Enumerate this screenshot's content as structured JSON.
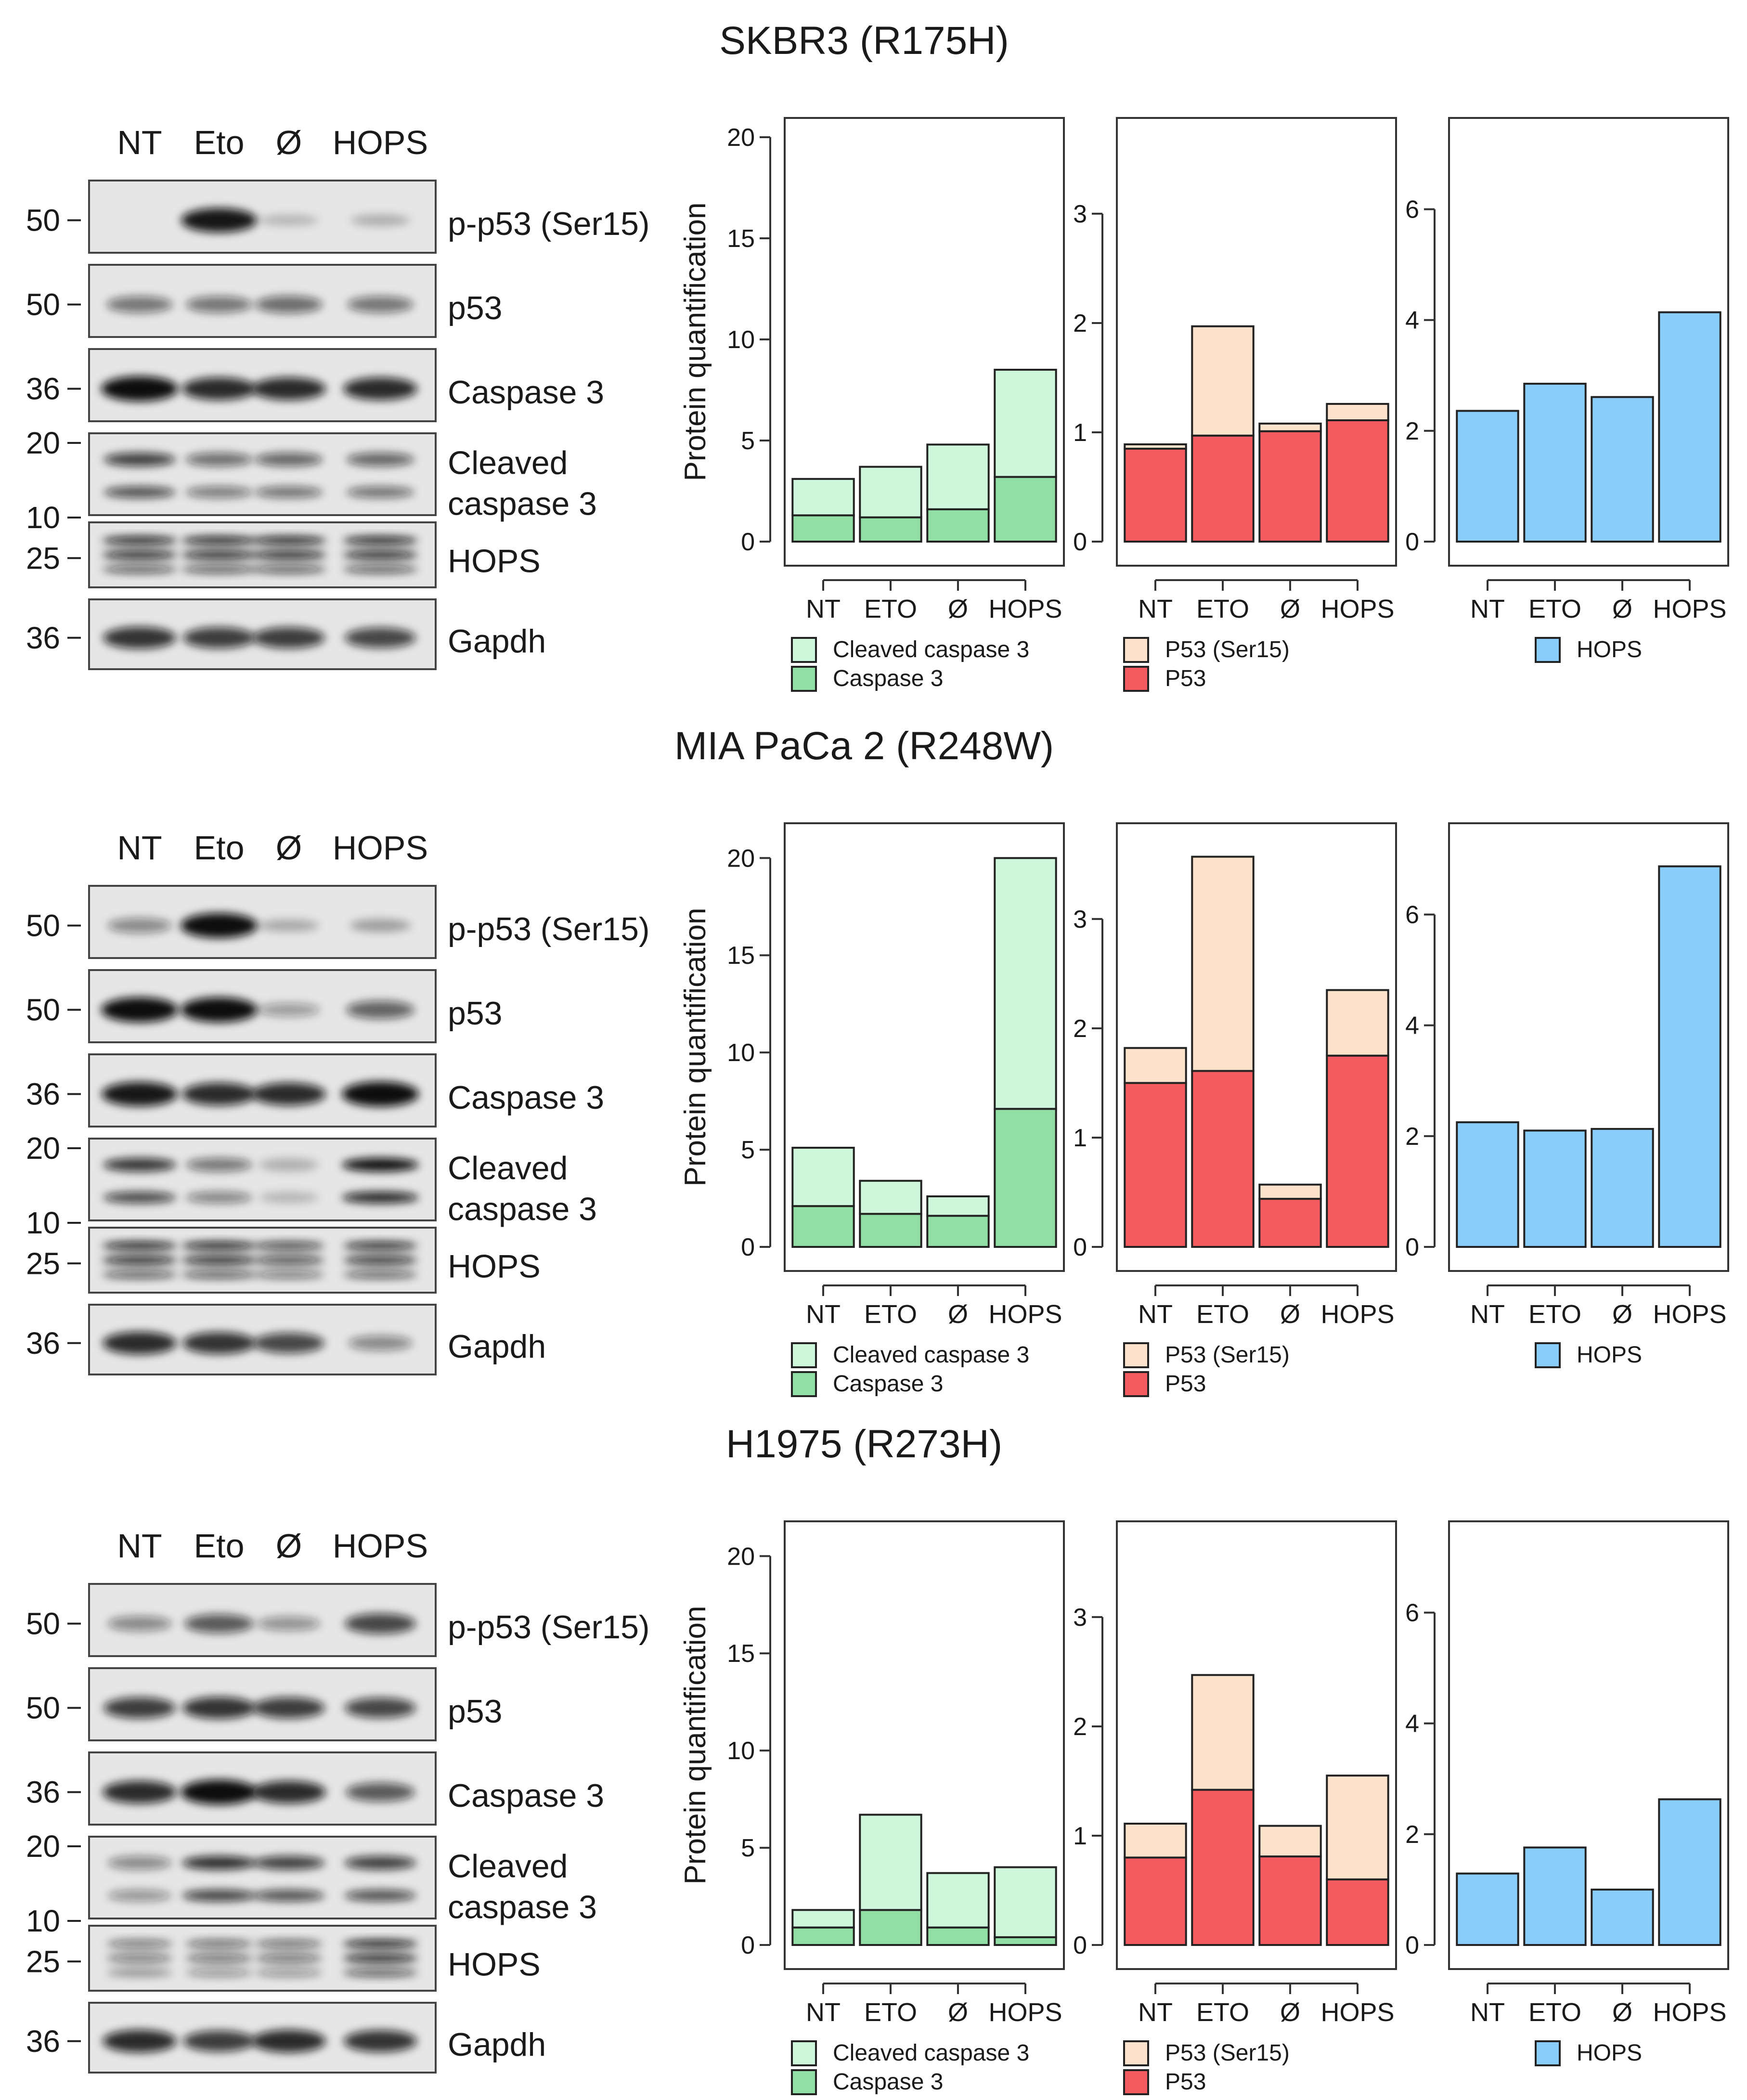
{
  "panels": [
    {
      "title": "SKBR3 (R175H)",
      "blot": {
        "lanes": [
          "NT",
          "Eto",
          "Ø",
          "HOPS"
        ],
        "rows": [
          {
            "label": "p-p53 (Ser15)",
            "marker": "50",
            "intensity": [
              0.0,
              0.95,
              0.08,
              0.12
            ],
            "bands": 1
          },
          {
            "label": "p53",
            "marker": "50",
            "intensity": [
              0.45,
              0.45,
              0.5,
              0.45
            ],
            "bands": 1
          },
          {
            "label": "Caspase 3",
            "marker": "36",
            "intensity": [
              1.0,
              0.85,
              0.85,
              0.85
            ],
            "bands": 1
          },
          {
            "label": "Cleaved\ncaspase 3",
            "marker": "20",
            "marker2": "10",
            "intensity": [
              0.75,
              0.5,
              0.55,
              0.55
            ],
            "bands": 2
          },
          {
            "label": "HOPS",
            "marker": "25",
            "intensity": [
              0.9,
              0.9,
              0.9,
              0.9
            ],
            "bands": 3
          },
          {
            "label": "Gapdh",
            "marker": "36",
            "intensity": [
              0.8,
              0.75,
              0.75,
              0.7
            ],
            "bands": 1
          }
        ]
      },
      "charts": [
        {
          "type": "bar",
          "stacked": true,
          "ylabel": "Protein quantification",
          "ylim": [
            0,
            20
          ],
          "yticks": [
            0,
            5,
            10,
            15,
            20
          ],
          "categories": [
            "NT",
            "ETO",
            "Ø",
            "HOPS"
          ],
          "series": [
            {
              "name": "Caspase 3",
              "color": "#92dfa6",
              "values": [
                1.3,
                1.2,
                1.6,
                3.2
              ]
            },
            {
              "name": "Cleaved caspase 3",
              "color": "#cff7dc",
              "values": [
                1.8,
                2.5,
                3.2,
                5.3
              ]
            }
          ]
        },
        {
          "type": "bar",
          "stacked": true,
          "ylabel": "",
          "ylim": [
            0,
            3.7
          ],
          "yticks": [
            0,
            1,
            2,
            3
          ],
          "categories": [
            "NT",
            "ETO",
            "Ø",
            "HOPS"
          ],
          "series": [
            {
              "name": "P53",
              "color": "#f45b60",
              "values": [
                0.85,
                0.97,
                1.01,
                1.11
              ]
            },
            {
              "name": "P53 (Ser15)",
              "color": "#fde3cc",
              "values": [
                0.04,
                1.0,
                0.07,
                0.15
              ]
            }
          ]
        },
        {
          "type": "bar",
          "stacked": false,
          "ylabel": "",
          "ylim": [
            0,
            7.3
          ],
          "yticks": [
            0,
            2,
            4,
            6
          ],
          "categories": [
            "NT",
            "ETO",
            "Ø",
            "HOPS"
          ],
          "series": [
            {
              "name": "HOPS",
              "color": "#8bcdfa",
              "values": [
                2.36,
                2.85,
                2.61,
                4.14
              ]
            }
          ]
        }
      ]
    },
    {
      "title": "MIA PaCa 2 (R248W)",
      "blot": {
        "lanes": [
          "NT",
          "Eto",
          "Ø",
          "HOPS"
        ],
        "rows": [
          {
            "label": "p-p53 (Ser15)",
            "marker": "50",
            "intensity": [
              0.35,
              1.0,
              0.15,
              0.2
            ],
            "bands": 1
          },
          {
            "label": "p53",
            "marker": "50",
            "intensity": [
              1.0,
              1.0,
              0.25,
              0.55
            ],
            "bands": 1
          },
          {
            "label": "Caspase 3",
            "marker": "36",
            "intensity": [
              0.95,
              0.85,
              0.85,
              1.0
            ],
            "bands": 1
          },
          {
            "label": "Cleaved\ncaspase 3",
            "marker": "20",
            "marker2": "10",
            "intensity": [
              0.8,
              0.45,
              0.1,
              1.0
            ],
            "bands": 2
          },
          {
            "label": "HOPS",
            "marker": "25",
            "intensity": [
              0.9,
              0.9,
              0.7,
              0.85
            ],
            "bands": 3
          },
          {
            "label": "Gapdh",
            "marker": "36",
            "intensity": [
              0.85,
              0.8,
              0.7,
              0.35
            ],
            "bands": 1
          }
        ]
      },
      "charts": [
        {
          "type": "bar",
          "stacked": true,
          "ylabel": "Protein quantification",
          "ylim": [
            0,
            20.8
          ],
          "yticks": [
            0,
            5,
            10,
            15,
            20
          ],
          "categories": [
            "NT",
            "ETO",
            "Ø",
            "HOPS"
          ],
          "series": [
            {
              "name": "Caspase 3",
              "color": "#92dfa6",
              "values": [
                2.1,
                1.7,
                1.6,
                7.1
              ]
            },
            {
              "name": "Cleaved caspase 3",
              "color": "#cff7dc",
              "values": [
                3.0,
                1.7,
                1.0,
                12.9
              ]
            }
          ]
        },
        {
          "type": "bar",
          "stacked": true,
          "ylabel": "",
          "ylim": [
            0,
            3.7
          ],
          "yticks": [
            0,
            1,
            2,
            3
          ],
          "categories": [
            "NT",
            "ETO",
            "Ø",
            "HOPS"
          ],
          "series": [
            {
              "name": "P53",
              "color": "#f45b60",
              "values": [
                1.5,
                1.61,
                0.44,
                1.75
              ]
            },
            {
              "name": "P53 (Ser15)",
              "color": "#fde3cc",
              "values": [
                0.32,
                1.96,
                0.13,
                0.6
              ]
            }
          ]
        },
        {
          "type": "bar",
          "stacked": false,
          "ylabel": "",
          "ylim": [
            0,
            7.3
          ],
          "yticks": [
            0,
            2,
            4,
            6
          ],
          "categories": [
            "NT",
            "ETO",
            "Ø",
            "HOPS"
          ],
          "series": [
            {
              "name": "HOPS",
              "color": "#8bcdfa",
              "values": [
                2.25,
                2.1,
                2.13,
                6.87
              ]
            }
          ]
        }
      ]
    },
    {
      "title": "H1975 (R273H)",
      "blot": {
        "lanes": [
          "NT",
          "Eto",
          "Ø",
          "HOPS"
        ],
        "rows": [
          {
            "label": "p-p53 (Ser15)",
            "marker": "50",
            "intensity": [
              0.35,
              0.6,
              0.3,
              0.7
            ],
            "bands": 1
          },
          {
            "label": "p53",
            "marker": "50",
            "intensity": [
              0.75,
              0.8,
              0.75,
              0.7
            ],
            "bands": 1
          },
          {
            "label": "Caspase 3",
            "marker": "36",
            "intensity": [
              0.85,
              1.0,
              0.85,
              0.6
            ],
            "bands": 1
          },
          {
            "label": "Cleaved\ncaspase 3",
            "marker": "20",
            "marker2": "10",
            "intensity": [
              0.35,
              0.85,
              0.75,
              0.75
            ],
            "bands": 2
          },
          {
            "label": "HOPS",
            "marker": "25",
            "intensity": [
              0.45,
              0.5,
              0.5,
              0.9
            ],
            "bands": 3
          },
          {
            "label": "Gapdh",
            "marker": "36",
            "intensity": [
              0.85,
              0.75,
              0.85,
              0.8
            ],
            "bands": 1
          }
        ]
      },
      "charts": [
        {
          "type": "bar",
          "stacked": true,
          "ylabel": "Protein quantification",
          "ylim": [
            0,
            20.8
          ],
          "yticks": [
            0,
            5,
            10,
            15,
            20
          ],
          "categories": [
            "NT",
            "ETO",
            "Ø",
            "HOPS"
          ],
          "series": [
            {
              "name": "Caspase 3",
              "color": "#92dfa6",
              "values": [
                0.9,
                1.8,
                0.9,
                0.4
              ]
            },
            {
              "name": "Cleaved caspase 3",
              "color": "#cff7dc",
              "values": [
                0.9,
                4.9,
                2.8,
                3.6
              ]
            }
          ]
        },
        {
          "type": "bar",
          "stacked": true,
          "ylabel": "",
          "ylim": [
            0,
            3.7
          ],
          "yticks": [
            0,
            1,
            2,
            3
          ],
          "categories": [
            "NT",
            "ETO",
            "Ø",
            "HOPS"
          ],
          "series": [
            {
              "name": "P53",
              "color": "#f45b60",
              "values": [
                0.8,
                1.42,
                0.81,
                0.6
              ]
            },
            {
              "name": "P53 (Ser15)",
              "color": "#fde3cc",
              "values": [
                0.31,
                1.05,
                0.28,
                0.95
              ]
            }
          ]
        },
        {
          "type": "bar",
          "stacked": false,
          "ylabel": "",
          "ylim": [
            0,
            7.3
          ],
          "yticks": [
            0,
            2,
            4,
            6
          ],
          "categories": [
            "NT",
            "ETO",
            "Ø",
            "HOPS"
          ],
          "series": [
            {
              "name": "HOPS",
              "color": "#8bcdfa",
              "values": [
                1.29,
                1.76,
                1.0,
                2.63
              ]
            }
          ]
        }
      ]
    }
  ],
  "chart_data": [
    {
      "type": "bar",
      "title": "SKBR3 (R175H)",
      "ylabel": "Protein quantification",
      "ylim": [
        0,
        20
      ],
      "categories": [
        "NT",
        "ETO",
        "Ø",
        "HOPS"
      ],
      "stacked": true,
      "series": [
        {
          "name": "Caspase 3",
          "values": [
            1.3,
            1.2,
            1.6,
            3.2
          ]
        },
        {
          "name": "Cleaved caspase 3",
          "values": [
            1.8,
            2.5,
            3.2,
            5.3
          ]
        }
      ]
    },
    {
      "type": "bar",
      "title": "SKBR3 (R175H)",
      "ylim": [
        0,
        3.7
      ],
      "categories": [
        "NT",
        "ETO",
        "Ø",
        "HOPS"
      ],
      "stacked": true,
      "series": [
        {
          "name": "P53",
          "values": [
            0.85,
            0.97,
            1.01,
            1.11
          ]
        },
        {
          "name": "P53 (Ser15)",
          "values": [
            0.04,
            1.0,
            0.07,
            0.15
          ]
        }
      ]
    },
    {
      "type": "bar",
      "title": "SKBR3 (R175H)",
      "ylim": [
        0,
        7.3
      ],
      "categories": [
        "NT",
        "ETO",
        "Ø",
        "HOPS"
      ],
      "series": [
        {
          "name": "HOPS",
          "values": [
            2.36,
            2.85,
            2.61,
            4.14
          ]
        }
      ]
    },
    {
      "type": "bar",
      "title": "MIA PaCa 2 (R248W)",
      "ylabel": "Protein quantification",
      "ylim": [
        0,
        20.8
      ],
      "categories": [
        "NT",
        "ETO",
        "Ø",
        "HOPS"
      ],
      "stacked": true,
      "series": [
        {
          "name": "Caspase 3",
          "values": [
            2.1,
            1.7,
            1.6,
            7.1
          ]
        },
        {
          "name": "Cleaved caspase 3",
          "values": [
            3.0,
            1.7,
            1.0,
            12.9
          ]
        }
      ]
    },
    {
      "type": "bar",
      "title": "MIA PaCa 2 (R248W)",
      "ylim": [
        0,
        3.7
      ],
      "categories": [
        "NT",
        "ETO",
        "Ø",
        "HOPS"
      ],
      "stacked": true,
      "series": [
        {
          "name": "P53",
          "values": [
            1.5,
            1.61,
            0.44,
            1.75
          ]
        },
        {
          "name": "P53 (Ser15)",
          "values": [
            0.32,
            1.96,
            0.13,
            0.6
          ]
        }
      ]
    },
    {
      "type": "bar",
      "title": "MIA PaCa 2 (R248W)",
      "ylim": [
        0,
        7.3
      ],
      "categories": [
        "NT",
        "ETO",
        "Ø",
        "HOPS"
      ],
      "series": [
        {
          "name": "HOPS",
          "values": [
            2.25,
            2.1,
            2.13,
            6.87
          ]
        }
      ]
    },
    {
      "type": "bar",
      "title": "H1975 (R273H)",
      "ylabel": "Protein quantification",
      "ylim": [
        0,
        20.8
      ],
      "categories": [
        "NT",
        "ETO",
        "Ø",
        "HOPS"
      ],
      "stacked": true,
      "series": [
        {
          "name": "Caspase 3",
          "values": [
            0.9,
            1.8,
            0.9,
            0.4
          ]
        },
        {
          "name": "Cleaved caspase 3",
          "values": [
            0.9,
            4.9,
            2.8,
            3.6
          ]
        }
      ]
    },
    {
      "type": "bar",
      "title": "H1975 (R273H)",
      "ylim": [
        0,
        3.7
      ],
      "categories": [
        "NT",
        "ETO",
        "Ø",
        "HOPS"
      ],
      "stacked": true,
      "series": [
        {
          "name": "P53",
          "values": [
            0.8,
            1.42,
            0.81,
            0.6
          ]
        },
        {
          "name": "P53 (Ser15)",
          "values": [
            0.31,
            1.05,
            0.28,
            0.95
          ]
        }
      ]
    },
    {
      "type": "bar",
      "title": "H1975 (R273H)",
      "ylim": [
        0,
        7.3
      ],
      "categories": [
        "NT",
        "ETO",
        "Ø",
        "HOPS"
      ],
      "series": [
        {
          "name": "HOPS",
          "values": [
            1.29,
            1.76,
            1.0,
            2.63
          ]
        }
      ]
    }
  ]
}
